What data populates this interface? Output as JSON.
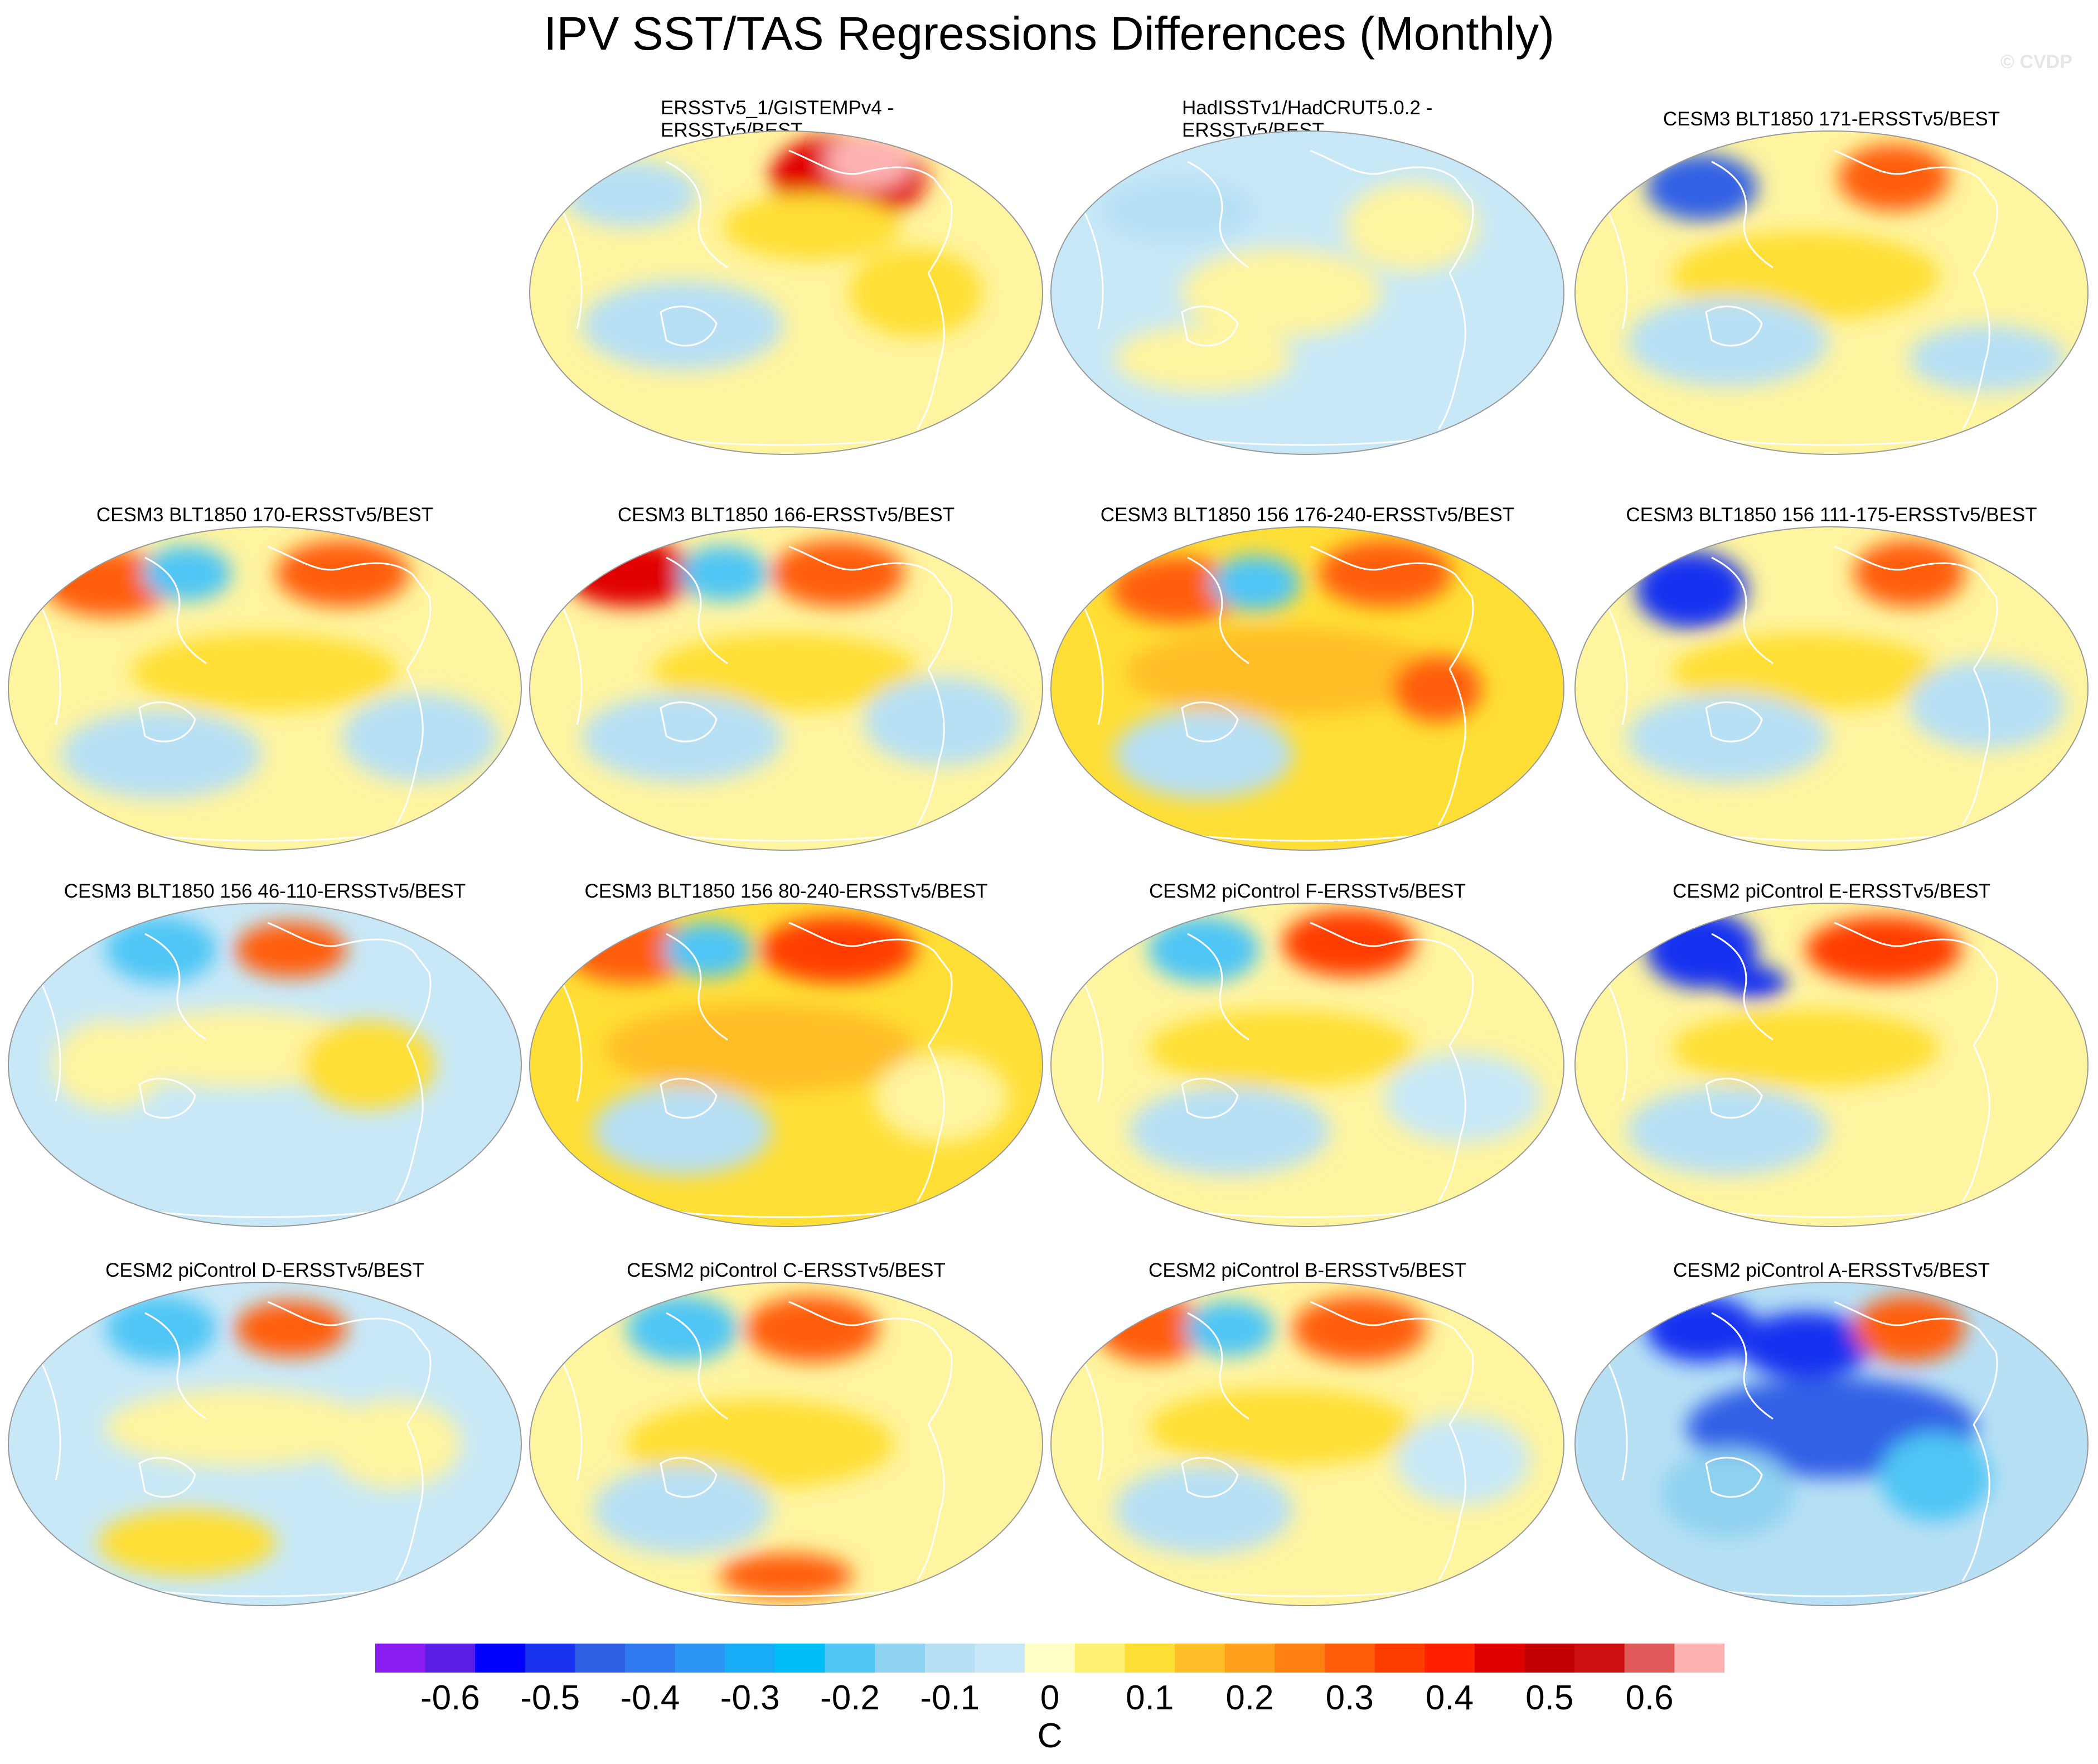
{
  "title": "IPV SST/TAS Regressions Differences (Monthly)",
  "copyright": "© CVDP",
  "colors": {
    "levels": [
      "#8b1cf1",
      "#5a1ee6",
      "#0000ff",
      "#1933f0",
      "#3060e6",
      "#2f7aee",
      "#2b94f5",
      "#18acf7",
      "#00bdf7",
      "#50c6f5",
      "#8fd2f0",
      "#b7e0f5",
      "#c8e8f7",
      "#ffffc6",
      "#fff171",
      "#ffdf36",
      "#ffbe28",
      "#ff9f1a",
      "#ff8010",
      "#ff5f0a",
      "#ff3c00",
      "#ff2000",
      "#e10000",
      "#c00000",
      "#ce1010",
      "#e05a5a",
      "#ffb2b2"
    ],
    "coast": "#ffffff",
    "border": "#999999"
  },
  "colorbar": {
    "labels": [
      "-0.6",
      "-0.5",
      "-0.4",
      "-0.3",
      "-0.2",
      "-0.1",
      "0",
      "0.1",
      "0.2",
      "0.3",
      "0.4",
      "0.5",
      "0.6"
    ],
    "units": "C"
  },
  "panels": [
    {
      "title": "ERSSTv5_1/GISTEMPv4 - ERSSTv5/BEST",
      "lines": [
        "ERSSTv5_1/GISTEMPv4 -",
        "ERSSTv5/BEST"
      ],
      "base": "#fff4a0",
      "blobs": [
        [
          0.62,
          0.15,
          70,
          40,
          "#e10000"
        ],
        [
          0.66,
          0.1,
          40,
          25,
          "#ffb2b2"
        ],
        [
          0.55,
          0.3,
          80,
          30,
          "#ffdf36"
        ],
        [
          0.3,
          0.6,
          90,
          40,
          "#b7e0f5"
        ],
        [
          0.75,
          0.5,
          60,
          40,
          "#ffdf36"
        ],
        [
          0.2,
          0.2,
          60,
          30,
          "#b7e0f5"
        ]
      ]
    },
    {
      "title": "HadISSTv1/HadCRUT5.0.2 - ERSSTv5/BEST",
      "lines": [
        "HadISSTv1/HadCRUT5.0.2 -",
        "ERSSTv5/BEST"
      ],
      "base": "#c8e8f7",
      "blobs": [
        [
          0.45,
          0.5,
          90,
          40,
          "#fff4a0"
        ],
        [
          0.7,
          0.3,
          60,
          40,
          "#fff4a0"
        ],
        [
          0.25,
          0.25,
          70,
          30,
          "#b7e0f5"
        ],
        [
          0.3,
          0.7,
          80,
          30,
          "#fff4a0"
        ]
      ]
    },
    {
      "title": "CESM3 BLT1850 171-ERSSTv5/BEST",
      "lines": [
        "CESM3 BLT1850 171-ERSSTv5/BEST"
      ],
      "base": "#fff4a0",
      "blobs": [
        [
          0.25,
          0.18,
          50,
          30,
          "#3060e6"
        ],
        [
          0.62,
          0.15,
          50,
          30,
          "#ff5f0a"
        ],
        [
          0.45,
          0.45,
          120,
          40,
          "#ffdf36"
        ],
        [
          0.3,
          0.65,
          90,
          40,
          "#b7e0f5"
        ],
        [
          0.8,
          0.7,
          70,
          30,
          "#b7e0f5"
        ]
      ]
    },
    {
      "title": "CESM3 BLT1850 170-ERSSTv5/BEST",
      "lines": [
        "CESM3 BLT1850 170-ERSSTv5/BEST"
      ],
      "base": "#fff4a0",
      "blobs": [
        [
          0.2,
          0.18,
          60,
          30,
          "#ff5f0a"
        ],
        [
          0.35,
          0.15,
          40,
          25,
          "#50c6f5"
        ],
        [
          0.65,
          0.15,
          60,
          30,
          "#ff5f0a"
        ],
        [
          0.5,
          0.45,
          120,
          35,
          "#ffdf36"
        ],
        [
          0.3,
          0.7,
          90,
          40,
          "#b7e0f5"
        ],
        [
          0.8,
          0.65,
          70,
          40,
          "#b7e0f5"
        ]
      ]
    },
    {
      "title": "CESM3 BLT1850 166-ERSSTv5/BEST",
      "lines": [
        "CESM3 BLT1850 166-ERSSTv5/BEST"
      ],
      "base": "#fff4a0",
      "blobs": [
        [
          0.2,
          0.15,
          60,
          30,
          "#e10000"
        ],
        [
          0.38,
          0.15,
          40,
          25,
          "#50c6f5"
        ],
        [
          0.6,
          0.15,
          60,
          30,
          "#ff5f0a"
        ],
        [
          0.5,
          0.45,
          120,
          35,
          "#ffdf36"
        ],
        [
          0.3,
          0.65,
          90,
          40,
          "#b7e0f5"
        ],
        [
          0.8,
          0.6,
          70,
          40,
          "#b7e0f5"
        ]
      ]
    },
    {
      "title": "CESM3 BLT1850 156 176-240-ERSSTv5/BEST",
      "lines": [
        "CESM3 BLT1850 156 176-240-ERSSTv5/BEST"
      ],
      "base": "#ffdf36",
      "blobs": [
        [
          0.25,
          0.2,
          60,
          30,
          "#ff5f0a"
        ],
        [
          0.4,
          0.18,
          40,
          25,
          "#50c6f5"
        ],
        [
          0.65,
          0.15,
          60,
          30,
          "#ff5f0a"
        ],
        [
          0.45,
          0.45,
          140,
          40,
          "#ffbe28"
        ],
        [
          0.75,
          0.5,
          40,
          30,
          "#ff5f0a"
        ],
        [
          0.3,
          0.7,
          80,
          40,
          "#b7e0f5"
        ]
      ]
    },
    {
      "title": "CESM3 BLT1850 156 111-175-ERSSTv5/BEST",
      "lines": [
        "CESM3 BLT1850 156 111-175-ERSSTv5/BEST"
      ],
      "base": "#fff4a0",
      "blobs": [
        [
          0.23,
          0.2,
          50,
          35,
          "#1933f0"
        ],
        [
          0.65,
          0.15,
          50,
          30,
          "#ff5f0a"
        ],
        [
          0.45,
          0.45,
          120,
          35,
          "#ffdf36"
        ],
        [
          0.3,
          0.65,
          90,
          40,
          "#b7e0f5"
        ],
        [
          0.8,
          0.55,
          70,
          40,
          "#b7e0f5"
        ]
      ]
    },
    {
      "title": "CESM3 BLT1850 156 46-110-ERSSTv5/BEST",
      "lines": [
        "CESM3 BLT1850 156 46-110-ERSSTv5/BEST"
      ],
      "base": "#c8e8f7",
      "blobs": [
        [
          0.3,
          0.15,
          50,
          30,
          "#50c6f5"
        ],
        [
          0.55,
          0.15,
          50,
          25,
          "#ff5f0a"
        ],
        [
          0.45,
          0.45,
          120,
          35,
          "#fff4a0"
        ],
        [
          0.7,
          0.5,
          60,
          40,
          "#ffdf36"
        ],
        [
          0.2,
          0.5,
          50,
          40,
          "#fff4a0"
        ]
      ]
    },
    {
      "title": "CESM3 BLT1850 156 80-240-ERSSTv5/BEST",
      "lines": [
        "CESM3 BLT1850 156 80-240-ERSSTv5/BEST"
      ],
      "base": "#ffdf36",
      "blobs": [
        [
          0.2,
          0.15,
          60,
          30,
          "#ff5f0a"
        ],
        [
          0.35,
          0.15,
          40,
          25,
          "#50c6f5"
        ],
        [
          0.6,
          0.15,
          70,
          30,
          "#ff3c00"
        ],
        [
          0.45,
          0.45,
          140,
          40,
          "#ffbe28"
        ],
        [
          0.3,
          0.7,
          80,
          40,
          "#b7e0f5"
        ],
        [
          0.8,
          0.6,
          60,
          40,
          "#fff4a0"
        ]
      ]
    },
    {
      "title": "CESM2 piControl F-ERSSTv5/BEST",
      "lines": [
        "CESM2 piControl F-ERSSTv5/BEST"
      ],
      "base": "#fff4a0",
      "blobs": [
        [
          0.3,
          0.15,
          50,
          30,
          "#50c6f5"
        ],
        [
          0.58,
          0.13,
          60,
          30,
          "#ff3c00"
        ],
        [
          0.45,
          0.45,
          120,
          35,
          "#ffdf36"
        ],
        [
          0.35,
          0.7,
          90,
          40,
          "#b7e0f5"
        ],
        [
          0.8,
          0.6,
          70,
          40,
          "#c8e8f7"
        ]
      ]
    },
    {
      "title": "CESM2 piControl E-ERSSTv5/BEST",
      "lines": [
        "CESM2 piControl E-ERSSTv5/BEST"
      ],
      "base": "#fff4a0",
      "blobs": [
        [
          0.25,
          0.15,
          50,
          35,
          "#1933f0"
        ],
        [
          0.35,
          0.25,
          30,
          15,
          "#1933f0"
        ],
        [
          0.6,
          0.15,
          70,
          30,
          "#ff3c00"
        ],
        [
          0.45,
          0.45,
          120,
          35,
          "#ffdf36"
        ],
        [
          0.3,
          0.7,
          90,
          40,
          "#b7e0f5"
        ]
      ]
    },
    {
      "title": "CESM2 piControl D-ERSSTv5/BEST",
      "lines": [
        "CESM2 piControl D-ERSSTv5/BEST"
      ],
      "base": "#c8e8f7",
      "blobs": [
        [
          0.3,
          0.15,
          50,
          30,
          "#50c6f5"
        ],
        [
          0.55,
          0.15,
          50,
          25,
          "#ff5f0a"
        ],
        [
          0.45,
          0.45,
          120,
          35,
          "#fff4a0"
        ],
        [
          0.35,
          0.8,
          80,
          30,
          "#ffdf36"
        ],
        [
          0.75,
          0.5,
          60,
          40,
          "#fff4a0"
        ]
      ]
    },
    {
      "title": "CESM2 piControl C-ERSSTv5/BEST",
      "lines": [
        "CESM2 piControl C-ERSSTv5/BEST"
      ],
      "base": "#fff4a0",
      "blobs": [
        [
          0.3,
          0.15,
          50,
          30,
          "#50c6f5"
        ],
        [
          0.55,
          0.15,
          60,
          30,
          "#ff5f0a"
        ],
        [
          0.45,
          0.5,
          120,
          40,
          "#ffdf36"
        ],
        [
          0.3,
          0.7,
          80,
          40,
          "#b7e0f5"
        ],
        [
          0.5,
          0.9,
          60,
          20,
          "#ff5f0a"
        ]
      ]
    },
    {
      "title": "CESM2 piControl B-ERSSTv5/BEST",
      "lines": [
        "CESM2 piControl B-ERSSTv5/BEST"
      ],
      "base": "#fff4a0",
      "blobs": [
        [
          0.2,
          0.15,
          50,
          30,
          "#ff5f0a"
        ],
        [
          0.35,
          0.15,
          40,
          25,
          "#50c6f5"
        ],
        [
          0.6,
          0.15,
          60,
          30,
          "#ff5f0a"
        ],
        [
          0.45,
          0.45,
          120,
          35,
          "#ffdf36"
        ],
        [
          0.3,
          0.7,
          80,
          40,
          "#b7e0f5"
        ],
        [
          0.8,
          0.55,
          60,
          40,
          "#c8e8f7"
        ]
      ]
    },
    {
      "title": "CESM2 piControl A-ERSSTv5/BEST",
      "lines": [
        "CESM2 piControl A-ERSSTv5/BEST"
      ],
      "base": "#b7e0f5",
      "blobs": [
        [
          0.25,
          0.15,
          50,
          30,
          "#1933f0"
        ],
        [
          0.45,
          0.2,
          60,
          30,
          "#1933f0"
        ],
        [
          0.65,
          0.15,
          50,
          30,
          "#ff5f0a"
        ],
        [
          0.5,
          0.45,
          130,
          45,
          "#3060e6"
        ],
        [
          0.7,
          0.6,
          50,
          40,
          "#50c6f5"
        ],
        [
          0.3,
          0.65,
          60,
          40,
          "#8fd2f0"
        ]
      ]
    }
  ]
}
